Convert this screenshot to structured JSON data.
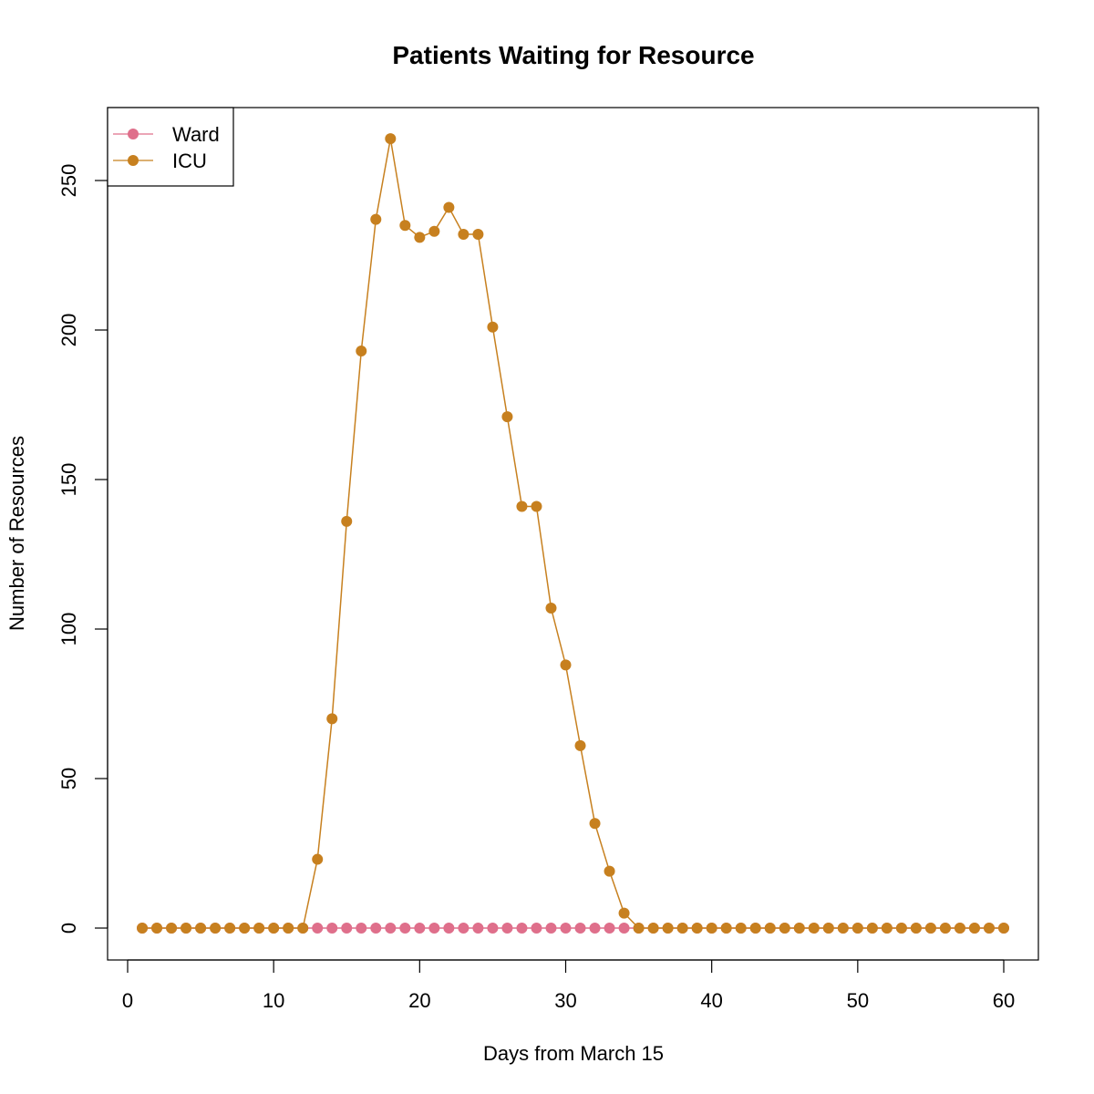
{
  "chart_data": {
    "type": "line",
    "title": "Patients Waiting for Resource",
    "xlabel": "Days from March 15",
    "ylabel": "Number of Resources",
    "xlim": [
      0,
      60
    ],
    "ylim": [
      0,
      270
    ],
    "xticks": [
      0,
      10,
      20,
      30,
      40,
      50,
      60
    ],
    "yticks": [
      0,
      50,
      100,
      150,
      200,
      250
    ],
    "grid": false,
    "legend_position": "top-left",
    "x": [
      1,
      2,
      3,
      4,
      5,
      6,
      7,
      8,
      9,
      10,
      11,
      12,
      13,
      14,
      15,
      16,
      17,
      18,
      19,
      20,
      21,
      22,
      23,
      24,
      25,
      26,
      27,
      28,
      29,
      30,
      31,
      32,
      33,
      34,
      35,
      36,
      37,
      38,
      39,
      40,
      41,
      42,
      43,
      44,
      45,
      46,
      47,
      48,
      49,
      50,
      51,
      52,
      53,
      54,
      55,
      56,
      57,
      58,
      59,
      60
    ],
    "series": [
      {
        "name": "Ward",
        "color": "#DF6F8B",
        "values": [
          0,
          0,
          0,
          0,
          0,
          0,
          0,
          0,
          0,
          0,
          0,
          0,
          0,
          0,
          0,
          0,
          0,
          0,
          0,
          0,
          0,
          0,
          0,
          0,
          0,
          0,
          0,
          0,
          0,
          0,
          0,
          0,
          0,
          0,
          0,
          0,
          0,
          0,
          0,
          0,
          0,
          0,
          0,
          0,
          0,
          0,
          0,
          0,
          0,
          0,
          0,
          0,
          0,
          0,
          0,
          0,
          0,
          0,
          0,
          0
        ]
      },
      {
        "name": "ICU",
        "color": "#C7801F",
        "values": [
          0,
          0,
          0,
          0,
          0,
          0,
          0,
          0,
          0,
          0,
          0,
          0,
          23,
          70,
          136,
          193,
          237,
          264,
          235,
          231,
          233,
          241,
          232,
          232,
          201,
          171,
          141,
          141,
          107,
          88,
          61,
          35,
          19,
          5,
          0,
          0,
          0,
          0,
          0,
          0,
          0,
          0,
          0,
          0,
          0,
          0,
          0,
          0,
          0,
          0,
          0,
          0,
          0,
          0,
          0,
          0,
          0,
          0,
          0,
          0
        ]
      }
    ]
  }
}
